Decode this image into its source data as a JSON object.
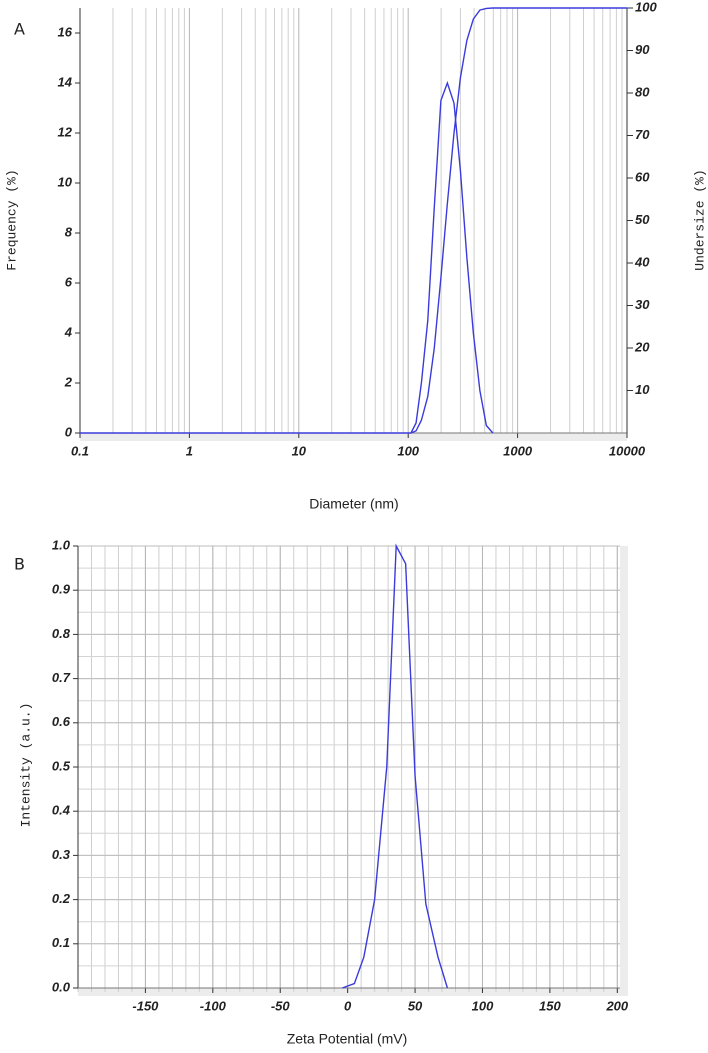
{
  "chart_data": [
    {
      "type": "line",
      "panel_label": "A",
      "x_label": "Diameter (nm)",
      "y_label": "Frequency (%)",
      "y2_label": "Undersize (%)",
      "xscale": "log",
      "x": [
        0.1,
        0.3,
        106,
        118,
        132,
        151,
        173,
        199,
        228,
        262,
        300,
        344,
        394,
        452,
        518,
        594,
        10000
      ],
      "series": [
        {
          "color": "#3b3bdc",
          "values": [
            0,
            0,
            0,
            0.4,
            2,
            4.5,
            9,
            13.3,
            14,
            13.2,
            10.5,
            7,
            4,
            1.7,
            0.3,
            0,
            null
          ]
        },
        {
          "color": "#3b3bdc",
          "axis": "y2",
          "values": [
            null,
            null,
            0,
            0.5,
            3,
            8.6,
            19.9,
            36.5,
            54,
            70.5,
            83.6,
            92.4,
            97.4,
            99.5,
            99.9,
            100,
            100
          ]
        }
      ],
      "xlim": [
        0.1,
        10000
      ],
      "xticks": [
        0.1,
        1,
        10,
        100,
        1000,
        10000
      ],
      "ylim": [
        0,
        17
      ],
      "yticks": [
        0,
        2,
        4,
        6,
        8,
        10,
        12,
        14,
        16
      ],
      "y2lim": [
        0,
        100
      ],
      "y2ticks": [
        10,
        20,
        30,
        40,
        50,
        60,
        70,
        80,
        90,
        100
      ],
      "grid": "x",
      "minor_grid": true
    },
    {
      "type": "line",
      "panel_label": "B",
      "x_label": "Zeta Potential (mV)",
      "y_label": "Intensity (a.u.)",
      "x": [
        -4,
        5,
        12,
        20,
        29,
        36,
        43,
        50,
        58,
        67,
        74
      ],
      "series": [
        {
          "color": "#3b3bdc",
          "values": [
            0,
            0.01,
            0.07,
            0.2,
            0.5,
            1.0,
            0.96,
            0.48,
            0.19,
            0.07,
            0
          ]
        }
      ],
      "xlim": [
        -200,
        202
      ],
      "xticks": [
        -150,
        -100,
        -50,
        0,
        50,
        100,
        150,
        200
      ],
      "ylim": [
        0,
        1
      ],
      "yticks": [
        {
          "value": 0,
          "label": "0.0"
        },
        0.1,
        0.2,
        0.3,
        0.4,
        0.5,
        0.6,
        0.7,
        0.8,
        0.9,
        {
          "value": 1,
          "label": "1.0"
        }
      ],
      "grid": "both",
      "minor_grid": true
    }
  ]
}
